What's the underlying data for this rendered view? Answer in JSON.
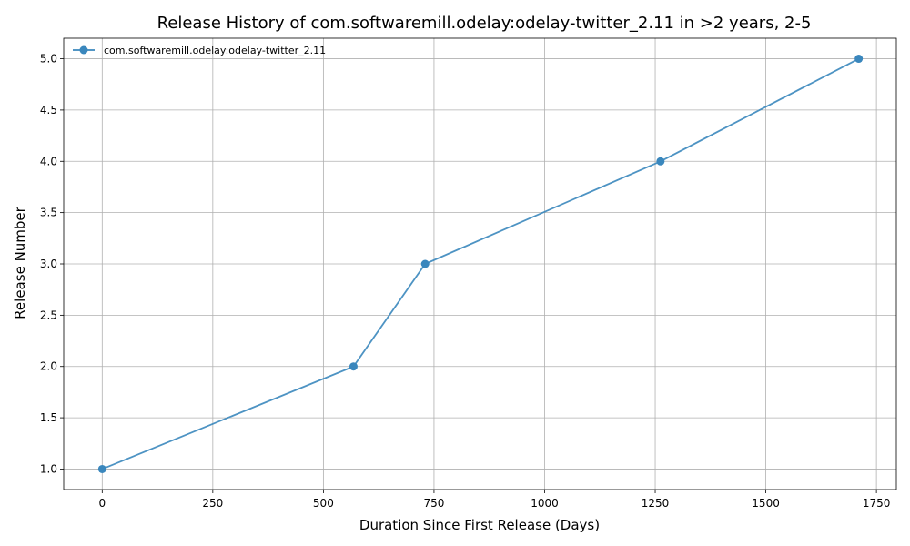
{
  "chart_data": {
    "type": "line",
    "title": "Release History of com.softwaremill.odelay:odelay-twitter_2.11 in >2 years, 2-5",
    "xlabel": "Duration Since First Release (Days)",
    "ylabel": "Release Number",
    "xlim": [
      -87,
      1795
    ],
    "ylim": [
      0.8,
      5.2
    ],
    "x_ticks": [
      0,
      250,
      500,
      750,
      1000,
      1250,
      1500,
      1750
    ],
    "y_ticks": [
      1.0,
      1.5,
      2.0,
      2.5,
      3.0,
      3.5,
      4.0,
      4.5,
      5.0
    ],
    "x_tick_labels": [
      "0",
      "250",
      "500",
      "750",
      "1000",
      "1250",
      "1500",
      "1750"
    ],
    "y_tick_labels": [
      "1.0",
      "1.5",
      "2.0",
      "2.5",
      "3.0",
      "3.5",
      "4.0",
      "4.5",
      "5.0"
    ],
    "grid": true,
    "legend_position": "top-left",
    "series": [
      {
        "name": "com.softwaremill.odelay:odelay-twitter_2.11",
        "color": "#3a87bd",
        "marker": "circle",
        "x": [
          0,
          568,
          730,
          1262,
          1710
        ],
        "y": [
          1,
          2,
          3,
          4,
          5
        ]
      }
    ]
  }
}
